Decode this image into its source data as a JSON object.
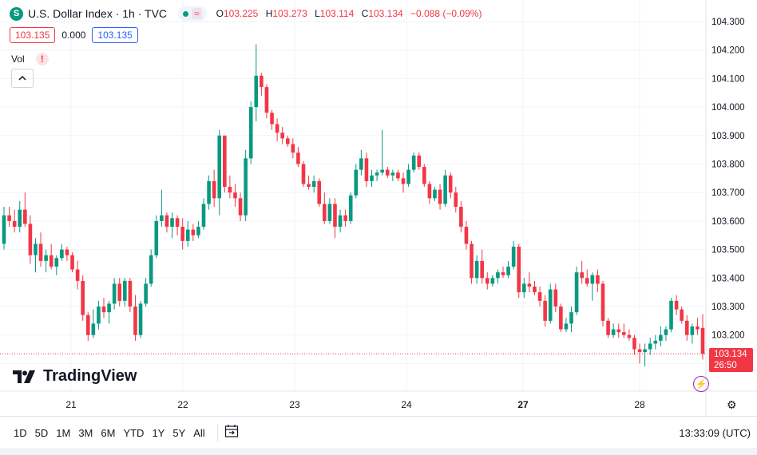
{
  "header": {
    "symbol_icon": "S",
    "title": "U.S. Dollar Index · 1h · TVC",
    "wave_icon": "≈",
    "ohlc": {
      "o_label": "O",
      "o": "103.225",
      "h_label": "H",
      "h": "103.273",
      "l_label": "L",
      "l": "103.114",
      "c_label": "C",
      "c": "103.134",
      "change": "−0.088 (−0.09%)"
    }
  },
  "boxes": {
    "bid": "103.135",
    "spread": "0.000",
    "ask": "103.135"
  },
  "volume": {
    "label": "Vol",
    "warning_icon": "!"
  },
  "logo": {
    "text": "TradingView"
  },
  "price_tag": {
    "price": "103.134",
    "countdown": "26:50"
  },
  "bottom": {
    "timeframes": [
      "1D",
      "5D",
      "1M",
      "3M",
      "6M",
      "YTD",
      "1Y",
      "5Y",
      "All"
    ],
    "clock": "13:33:09 (UTC)"
  },
  "colors": {
    "up": "#089981",
    "down": "#f23645",
    "grid": "#f0f3fa",
    "text": "#131722"
  },
  "chart_data": {
    "type": "candlestick",
    "ylim": [
      103.05,
      104.35
    ],
    "y_ticks": [
      "104.300",
      "104.200",
      "104.100",
      "104.000",
      "103.900",
      "103.800",
      "103.700",
      "103.600",
      "103.500",
      "103.400",
      "103.300",
      "103.200"
    ],
    "x_ticks": [
      "21",
      "22",
      "23",
      "24",
      "27",
      "28"
    ],
    "last_price": 103.134,
    "candles": [
      {
        "o": 103.52,
        "h": 103.65,
        "l": 103.5,
        "c": 103.62
      },
      {
        "o": 103.62,
        "h": 103.65,
        "l": 103.58,
        "c": 103.6
      },
      {
        "o": 103.6,
        "h": 103.64,
        "l": 103.56,
        "c": 103.58
      },
      {
        "o": 103.58,
        "h": 103.67,
        "l": 103.56,
        "c": 103.64
      },
      {
        "o": 103.64,
        "h": 103.7,
        "l": 103.58,
        "c": 103.59
      },
      {
        "o": 103.59,
        "h": 103.62,
        "l": 103.45,
        "c": 103.48
      },
      {
        "o": 103.48,
        "h": 103.54,
        "l": 103.42,
        "c": 103.52
      },
      {
        "o": 103.52,
        "h": 103.56,
        "l": 103.44,
        "c": 103.46
      },
      {
        "o": 103.46,
        "h": 103.5,
        "l": 103.42,
        "c": 103.48
      },
      {
        "o": 103.48,
        "h": 103.52,
        "l": 103.43,
        "c": 103.44
      },
      {
        "o": 103.44,
        "h": 103.48,
        "l": 103.41,
        "c": 103.47
      },
      {
        "o": 103.47,
        "h": 103.52,
        "l": 103.46,
        "c": 103.5
      },
      {
        "o": 103.5,
        "h": 103.51,
        "l": 103.46,
        "c": 103.48
      },
      {
        "o": 103.48,
        "h": 103.49,
        "l": 103.42,
        "c": 103.43
      },
      {
        "o": 103.43,
        "h": 103.46,
        "l": 103.36,
        "c": 103.39
      },
      {
        "o": 103.39,
        "h": 103.41,
        "l": 103.25,
        "c": 103.27
      },
      {
        "o": 103.27,
        "h": 103.28,
        "l": 103.18,
        "c": 103.2
      },
      {
        "o": 103.2,
        "h": 103.29,
        "l": 103.19,
        "c": 103.24
      },
      {
        "o": 103.24,
        "h": 103.32,
        "l": 103.22,
        "c": 103.3
      },
      {
        "o": 103.3,
        "h": 103.33,
        "l": 103.26,
        "c": 103.28
      },
      {
        "o": 103.28,
        "h": 103.32,
        "l": 103.24,
        "c": 103.31
      },
      {
        "o": 103.31,
        "h": 103.4,
        "l": 103.29,
        "c": 103.38
      },
      {
        "o": 103.38,
        "h": 103.4,
        "l": 103.3,
        "c": 103.32
      },
      {
        "o": 103.32,
        "h": 103.4,
        "l": 103.3,
        "c": 103.39
      },
      {
        "o": 103.39,
        "h": 103.4,
        "l": 103.28,
        "c": 103.3
      },
      {
        "o": 103.3,
        "h": 103.34,
        "l": 103.18,
        "c": 103.2
      },
      {
        "o": 103.2,
        "h": 103.32,
        "l": 103.19,
        "c": 103.31
      },
      {
        "o": 103.31,
        "h": 103.4,
        "l": 103.3,
        "c": 103.38
      },
      {
        "o": 103.38,
        "h": 103.5,
        "l": 103.37,
        "c": 103.48
      },
      {
        "o": 103.48,
        "h": 103.62,
        "l": 103.47,
        "c": 103.6
      },
      {
        "o": 103.6,
        "h": 103.71,
        "l": 103.58,
        "c": 103.62
      },
      {
        "o": 103.62,
        "h": 103.63,
        "l": 103.56,
        "c": 103.58
      },
      {
        "o": 103.58,
        "h": 103.63,
        "l": 103.54,
        "c": 103.61
      },
      {
        "o": 103.61,
        "h": 103.62,
        "l": 103.55,
        "c": 103.58
      },
      {
        "o": 103.58,
        "h": 103.61,
        "l": 103.5,
        "c": 103.53
      },
      {
        "o": 103.53,
        "h": 103.6,
        "l": 103.51,
        "c": 103.57
      },
      {
        "o": 103.57,
        "h": 103.59,
        "l": 103.53,
        "c": 103.55
      },
      {
        "o": 103.55,
        "h": 103.6,
        "l": 103.54,
        "c": 103.58
      },
      {
        "o": 103.58,
        "h": 103.68,
        "l": 103.57,
        "c": 103.66
      },
      {
        "o": 103.66,
        "h": 103.76,
        "l": 103.64,
        "c": 103.74
      },
      {
        "o": 103.74,
        "h": 103.78,
        "l": 103.65,
        "c": 103.68
      },
      {
        "o": 103.68,
        "h": 103.92,
        "l": 103.62,
        "c": 103.9
      },
      {
        "o": 103.9,
        "h": 103.9,
        "l": 103.7,
        "c": 103.72
      },
      {
        "o": 103.72,
        "h": 103.76,
        "l": 103.68,
        "c": 103.7
      },
      {
        "o": 103.7,
        "h": 103.73,
        "l": 103.65,
        "c": 103.68
      },
      {
        "o": 103.68,
        "h": 103.7,
        "l": 103.6,
        "c": 103.62
      },
      {
        "o": 103.62,
        "h": 103.85,
        "l": 103.6,
        "c": 103.82
      },
      {
        "o": 103.82,
        "h": 104.02,
        "l": 103.8,
        "c": 104.0
      },
      {
        "o": 104.0,
        "h": 104.22,
        "l": 103.95,
        "c": 104.11
      },
      {
        "o": 104.11,
        "h": 104.12,
        "l": 104.04,
        "c": 104.07
      },
      {
        "o": 104.07,
        "h": 104.08,
        "l": 103.96,
        "c": 103.98
      },
      {
        "o": 103.98,
        "h": 103.99,
        "l": 103.92,
        "c": 103.94
      },
      {
        "o": 103.94,
        "h": 103.96,
        "l": 103.88,
        "c": 103.91
      },
      {
        "o": 103.91,
        "h": 103.93,
        "l": 103.87,
        "c": 103.89
      },
      {
        "o": 103.89,
        "h": 103.9,
        "l": 103.86,
        "c": 103.87
      },
      {
        "o": 103.87,
        "h": 103.89,
        "l": 103.82,
        "c": 103.84
      },
      {
        "o": 103.84,
        "h": 103.86,
        "l": 103.79,
        "c": 103.8
      },
      {
        "o": 103.8,
        "h": 103.81,
        "l": 103.72,
        "c": 103.73
      },
      {
        "o": 103.73,
        "h": 103.76,
        "l": 103.71,
        "c": 103.72
      },
      {
        "o": 103.72,
        "h": 103.76,
        "l": 103.7,
        "c": 103.74
      },
      {
        "o": 103.74,
        "h": 103.75,
        "l": 103.65,
        "c": 103.66
      },
      {
        "o": 103.66,
        "h": 103.7,
        "l": 103.59,
        "c": 103.6
      },
      {
        "o": 103.6,
        "h": 103.68,
        "l": 103.59,
        "c": 103.66
      },
      {
        "o": 103.66,
        "h": 103.68,
        "l": 103.54,
        "c": 103.58
      },
      {
        "o": 103.58,
        "h": 103.64,
        "l": 103.56,
        "c": 103.62
      },
      {
        "o": 103.62,
        "h": 103.64,
        "l": 103.58,
        "c": 103.6
      },
      {
        "o": 103.6,
        "h": 103.7,
        "l": 103.59,
        "c": 103.69
      },
      {
        "o": 103.69,
        "h": 103.8,
        "l": 103.68,
        "c": 103.78
      },
      {
        "o": 103.78,
        "h": 103.85,
        "l": 103.76,
        "c": 103.82
      },
      {
        "o": 103.82,
        "h": 103.84,
        "l": 103.72,
        "c": 103.74
      },
      {
        "o": 103.74,
        "h": 103.78,
        "l": 103.72,
        "c": 103.76
      },
      {
        "o": 103.76,
        "h": 103.78,
        "l": 103.74,
        "c": 103.77
      },
      {
        "o": 103.77,
        "h": 103.92,
        "l": 103.76,
        "c": 103.78
      },
      {
        "o": 103.78,
        "h": 103.79,
        "l": 103.75,
        "c": 103.76
      },
      {
        "o": 103.76,
        "h": 103.78,
        "l": 103.74,
        "c": 103.77
      },
      {
        "o": 103.77,
        "h": 103.78,
        "l": 103.74,
        "c": 103.75
      },
      {
        "o": 103.75,
        "h": 103.77,
        "l": 103.7,
        "c": 103.73
      },
      {
        "o": 103.73,
        "h": 103.8,
        "l": 103.72,
        "c": 103.78
      },
      {
        "o": 103.78,
        "h": 103.84,
        "l": 103.77,
        "c": 103.83
      },
      {
        "o": 103.83,
        "h": 103.84,
        "l": 103.78,
        "c": 103.79
      },
      {
        "o": 103.79,
        "h": 103.8,
        "l": 103.72,
        "c": 103.73
      },
      {
        "o": 103.73,
        "h": 103.74,
        "l": 103.66,
        "c": 103.68
      },
      {
        "o": 103.68,
        "h": 103.72,
        "l": 103.67,
        "c": 103.71
      },
      {
        "o": 103.71,
        "h": 103.73,
        "l": 103.64,
        "c": 103.66
      },
      {
        "o": 103.66,
        "h": 103.78,
        "l": 103.65,
        "c": 103.76
      },
      {
        "o": 103.76,
        "h": 103.77,
        "l": 103.68,
        "c": 103.7
      },
      {
        "o": 103.7,
        "h": 103.72,
        "l": 103.63,
        "c": 103.65
      },
      {
        "o": 103.65,
        "h": 103.67,
        "l": 103.56,
        "c": 103.58
      },
      {
        "o": 103.58,
        "h": 103.6,
        "l": 103.5,
        "c": 103.52
      },
      {
        "o": 103.52,
        "h": 103.53,
        "l": 103.38,
        "c": 103.4
      },
      {
        "o": 103.4,
        "h": 103.48,
        "l": 103.38,
        "c": 103.46
      },
      {
        "o": 103.46,
        "h": 103.5,
        "l": 103.38,
        "c": 103.4
      },
      {
        "o": 103.4,
        "h": 103.42,
        "l": 103.36,
        "c": 103.38
      },
      {
        "o": 103.38,
        "h": 103.41,
        "l": 103.37,
        "c": 103.4
      },
      {
        "o": 103.4,
        "h": 103.43,
        "l": 103.38,
        "c": 103.42
      },
      {
        "o": 103.42,
        "h": 103.44,
        "l": 103.4,
        "c": 103.41
      },
      {
        "o": 103.41,
        "h": 103.46,
        "l": 103.4,
        "c": 103.44
      },
      {
        "o": 103.44,
        "h": 103.53,
        "l": 103.43,
        "c": 103.51
      },
      {
        "o": 103.51,
        "h": 103.52,
        "l": 103.33,
        "c": 103.35
      },
      {
        "o": 103.35,
        "h": 103.4,
        "l": 103.33,
        "c": 103.38
      },
      {
        "o": 103.38,
        "h": 103.42,
        "l": 103.35,
        "c": 103.37
      },
      {
        "o": 103.37,
        "h": 103.39,
        "l": 103.34,
        "c": 103.35
      },
      {
        "o": 103.35,
        "h": 103.37,
        "l": 103.3,
        "c": 103.32
      },
      {
        "o": 103.32,
        "h": 103.34,
        "l": 103.23,
        "c": 103.25
      },
      {
        "o": 103.25,
        "h": 103.38,
        "l": 103.24,
        "c": 103.36
      },
      {
        "o": 103.36,
        "h": 103.38,
        "l": 103.28,
        "c": 103.3
      },
      {
        "o": 103.3,
        "h": 103.31,
        "l": 103.21,
        "c": 103.22
      },
      {
        "o": 103.22,
        "h": 103.26,
        "l": 103.21,
        "c": 103.24
      },
      {
        "o": 103.24,
        "h": 103.3,
        "l": 103.21,
        "c": 103.28
      },
      {
        "o": 103.28,
        "h": 103.44,
        "l": 103.27,
        "c": 103.42
      },
      {
        "o": 103.42,
        "h": 103.46,
        "l": 103.38,
        "c": 103.4
      },
      {
        "o": 103.4,
        "h": 103.43,
        "l": 103.37,
        "c": 103.38
      },
      {
        "o": 103.38,
        "h": 103.42,
        "l": 103.32,
        "c": 103.41
      },
      {
        "o": 103.41,
        "h": 103.43,
        "l": 103.35,
        "c": 103.38
      },
      {
        "o": 103.38,
        "h": 103.39,
        "l": 103.23,
        "c": 103.25
      },
      {
        "o": 103.25,
        "h": 103.26,
        "l": 103.19,
        "c": 103.2
      },
      {
        "o": 103.2,
        "h": 103.24,
        "l": 103.19,
        "c": 103.22
      },
      {
        "o": 103.22,
        "h": 103.24,
        "l": 103.19,
        "c": 103.21
      },
      {
        "o": 103.21,
        "h": 103.24,
        "l": 103.19,
        "c": 103.2
      },
      {
        "o": 103.2,
        "h": 103.22,
        "l": 103.18,
        "c": 103.19
      },
      {
        "o": 103.19,
        "h": 103.2,
        "l": 103.13,
        "c": 103.15
      },
      {
        "o": 103.15,
        "h": 103.17,
        "l": 103.1,
        "c": 103.14
      },
      {
        "o": 103.14,
        "h": 103.17,
        "l": 103.09,
        "c": 103.15
      },
      {
        "o": 103.15,
        "h": 103.19,
        "l": 103.13,
        "c": 103.17
      },
      {
        "o": 103.17,
        "h": 103.2,
        "l": 103.15,
        "c": 103.18
      },
      {
        "o": 103.18,
        "h": 103.23,
        "l": 103.16,
        "c": 103.2
      },
      {
        "o": 103.2,
        "h": 103.23,
        "l": 103.18,
        "c": 103.22
      },
      {
        "o": 103.22,
        "h": 103.33,
        "l": 103.21,
        "c": 103.32
      },
      {
        "o": 103.32,
        "h": 103.34,
        "l": 103.27,
        "c": 103.29
      },
      {
        "o": 103.29,
        "h": 103.3,
        "l": 103.24,
        "c": 103.25
      },
      {
        "o": 103.25,
        "h": 103.27,
        "l": 103.18,
        "c": 103.2
      },
      {
        "o": 103.2,
        "h": 103.24,
        "l": 103.17,
        "c": 103.23
      },
      {
        "o": 103.23,
        "h": 103.26,
        "l": 103.2,
        "c": 103.22
      },
      {
        "o": 103.225,
        "h": 103.273,
        "l": 103.114,
        "c": 103.134
      }
    ]
  }
}
